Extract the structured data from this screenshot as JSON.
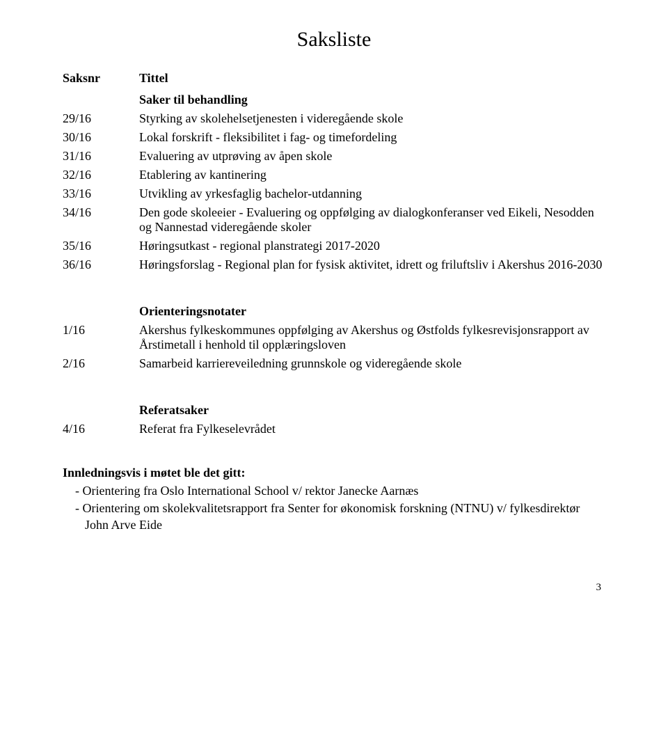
{
  "page_title": "Saksliste",
  "headers": {
    "saksnr": "Saksnr",
    "tittel": "Tittel"
  },
  "sections": {
    "saker": {
      "heading": "Saker til behandling",
      "items": [
        {
          "nr": "29/16",
          "text": "Styrking av skolehelsetjenesten i videregående skole"
        },
        {
          "nr": "30/16",
          "text": "Lokal forskrift - fleksibilitet i fag- og timefordeling"
        },
        {
          "nr": "31/16",
          "text": "Evaluering av utprøving av åpen skole"
        },
        {
          "nr": "32/16",
          "text": "Etablering av kantinering"
        },
        {
          "nr": "33/16",
          "text": "Utvikling av yrkesfaglig bachelor-utdanning"
        },
        {
          "nr": "34/16",
          "text": "Den gode skoleeier - Evaluering og oppfølging av dialogkonferanser ved Eikeli, Nesodden og Nannestad videregående skoler"
        },
        {
          "nr": "35/16",
          "text": "Høringsutkast - regional planstrategi 2017-2020"
        },
        {
          "nr": "36/16",
          "text": "Høringsforslag - Regional plan for fysisk aktivitet, idrett og friluftsliv i Akershus 2016-2030"
        }
      ]
    },
    "orientering": {
      "heading": "Orienteringsnotater",
      "items": [
        {
          "nr": "1/16",
          "text": "Akershus fylkeskommunes oppfølging av Akershus og Østfolds fylkesrevisjonsrapport av Årstimetall i henhold til opplæringsloven"
        },
        {
          "nr": "2/16",
          "text": "Samarbeid karriereveiledning grunnskole og videregående skole"
        }
      ]
    },
    "referat": {
      "heading": "Referatsaker",
      "items": [
        {
          "nr": "4/16",
          "text": "Referat fra Fylkeselevrådet"
        }
      ]
    }
  },
  "intro": {
    "title": "Innledningsvis i møtet ble det gitt:",
    "lines": [
      "- Orientering fra Oslo International School v/ rektor Janecke Aarnæs",
      "- Orientering om skolekvalitetsrapport fra Senter for økonomisk forskning (NTNU) v/ fylkesdirektør John Arve Eide"
    ]
  },
  "page_number": "3"
}
